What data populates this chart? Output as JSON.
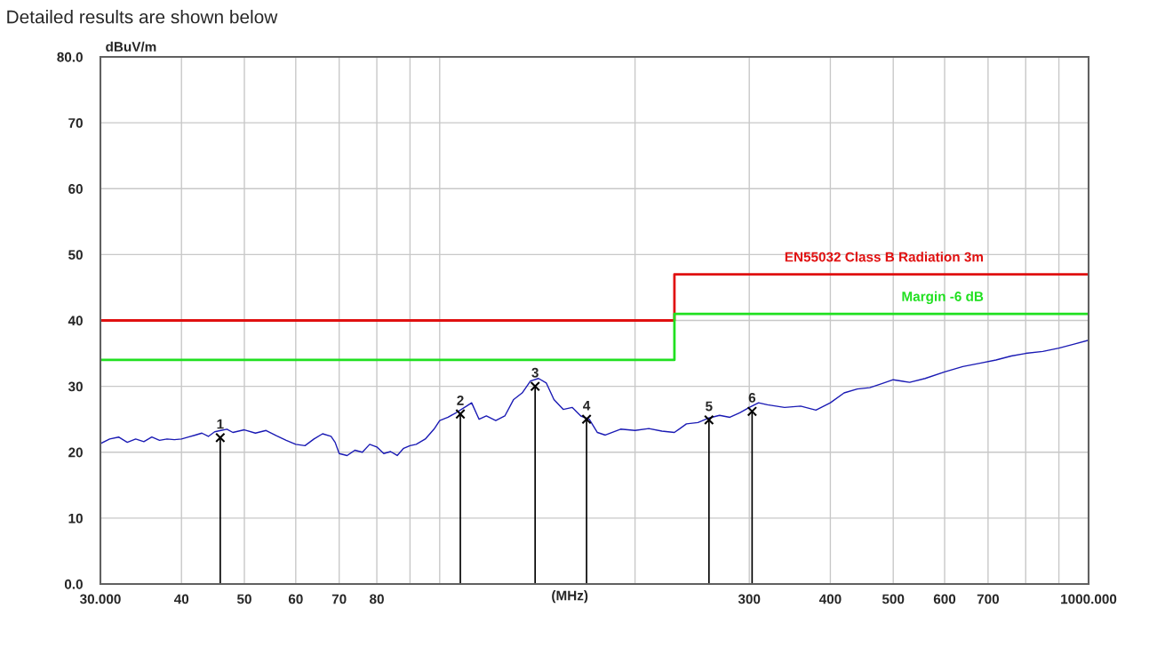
{
  "chart_data": {
    "type": "line",
    "title": "Detailed results are shown below",
    "xlabel": "(MHz)",
    "ylabel": "dBuV/m",
    "log": "x",
    "xlim": [
      30,
      1000
    ],
    "ylim": [
      0,
      80
    ],
    "xticks": [
      {
        "value": 30,
        "label": "30.000"
      },
      40,
      50,
      60,
      70,
      80,
      {
        "value": 90,
        "label": null
      },
      {
        "value": 100,
        "label": null
      },
      {
        "value": 200,
        "label": null
      },
      300,
      400,
      500,
      600,
      700,
      {
        "value": 800,
        "label": null
      },
      {
        "value": 900,
        "label": null
      },
      {
        "value": 1000,
        "label": "1000.000"
      }
    ],
    "yticks": [
      {
        "value": 0,
        "label": "0.0"
      },
      10,
      20,
      30,
      40,
      50,
      60,
      70,
      {
        "value": 80,
        "label": "80.0"
      }
    ],
    "grid": true,
    "legend": false,
    "series": [
      {
        "color": "#1a1ab4",
        "x": [
          30,
          31,
          32,
          33,
          34,
          35,
          36,
          37,
          38,
          39,
          40,
          41,
          42,
          43,
          44,
          45,
          46,
          47,
          48,
          50,
          52,
          54,
          56,
          58,
          60,
          62,
          64,
          66,
          68,
          69,
          70,
          72,
          74,
          76,
          78,
          80,
          82,
          84,
          86,
          88,
          90,
          92,
          95,
          98,
          100,
          103,
          106,
          110,
          112,
          115,
          118,
          122,
          126,
          130,
          134,
          138,
          142,
          146,
          150,
          155,
          160,
          165,
          170,
          175,
          180,
          190,
          200,
          210,
          220,
          230,
          240,
          250,
          260,
          270,
          280,
          290,
          300,
          310,
          320,
          340,
          360,
          380,
          400,
          420,
          440,
          460,
          480,
          500,
          530,
          560,
          600,
          640,
          680,
          720,
          760,
          800,
          850,
          900,
          950,
          1000
        ],
        "values": [
          21.3,
          22.0,
          22.3,
          21.5,
          22.0,
          21.6,
          22.3,
          21.8,
          22.0,
          21.9,
          22.0,
          22.3,
          22.6,
          22.9,
          22.4,
          23.1,
          23.3,
          23.5,
          23.0,
          23.4,
          22.9,
          23.3,
          22.5,
          21.8,
          21.2,
          21.0,
          22.0,
          22.8,
          22.4,
          21.5,
          19.8,
          19.5,
          20.3,
          20.0,
          21.2,
          20.8,
          19.8,
          20.1,
          19.5,
          20.6,
          21.0,
          21.2,
          22.0,
          23.5,
          24.8,
          25.3,
          26.0,
          27.0,
          27.5,
          25.0,
          25.5,
          24.8,
          25.5,
          28.0,
          29.0,
          30.8,
          31.2,
          30.5,
          28.0,
          26.5,
          26.8,
          25.5,
          25.0,
          23.0,
          22.6,
          23.5,
          23.3,
          23.6,
          23.2,
          23.0,
          24.3,
          24.5,
          25.2,
          25.6,
          25.3,
          26.0,
          26.8,
          27.5,
          27.2,
          26.8,
          27.0,
          26.4,
          27.5,
          29.0,
          29.6,
          29.8,
          30.4,
          31.0,
          30.6,
          31.2,
          32.2,
          33.0,
          33.5,
          34.0,
          34.6,
          35.0,
          35.3,
          35.8,
          36.4,
          37.0
        ]
      },
      {
        "type": "step",
        "name": "EN55032 Class B Radiation 3m",
        "color": "#e01010",
        "x": [
          30,
          230,
          1000
        ],
        "values": [
          40,
          47,
          47
        ]
      },
      {
        "type": "step",
        "name": "Margin -6 dB",
        "color": "#20e020",
        "x": [
          30,
          230,
          1000
        ],
        "values": [
          34,
          41,
          41
        ]
      },
      {
        "type": "lollipop",
        "color": "#000000",
        "marker": "cross",
        "x": [
          45.9,
          107.6,
          140.3,
          168.4,
          260,
          303
        ],
        "values": [
          22.2,
          25.8,
          30.0,
          25.0,
          24.9,
          26.2
        ]
      }
    ],
    "annotations": [
      {
        "text": "1",
        "x": 45.9,
        "y": 22.2
      },
      {
        "text": "2",
        "x": 107.6,
        "y": 25.8
      },
      {
        "text": "3",
        "x": 140.3,
        "y": 30.0
      },
      {
        "text": "4",
        "x": 168.4,
        "y": 25.0
      },
      {
        "text": "5",
        "x": 260,
        "y": 24.9
      },
      {
        "text": "6",
        "x": 303,
        "y": 26.2
      }
    ]
  }
}
